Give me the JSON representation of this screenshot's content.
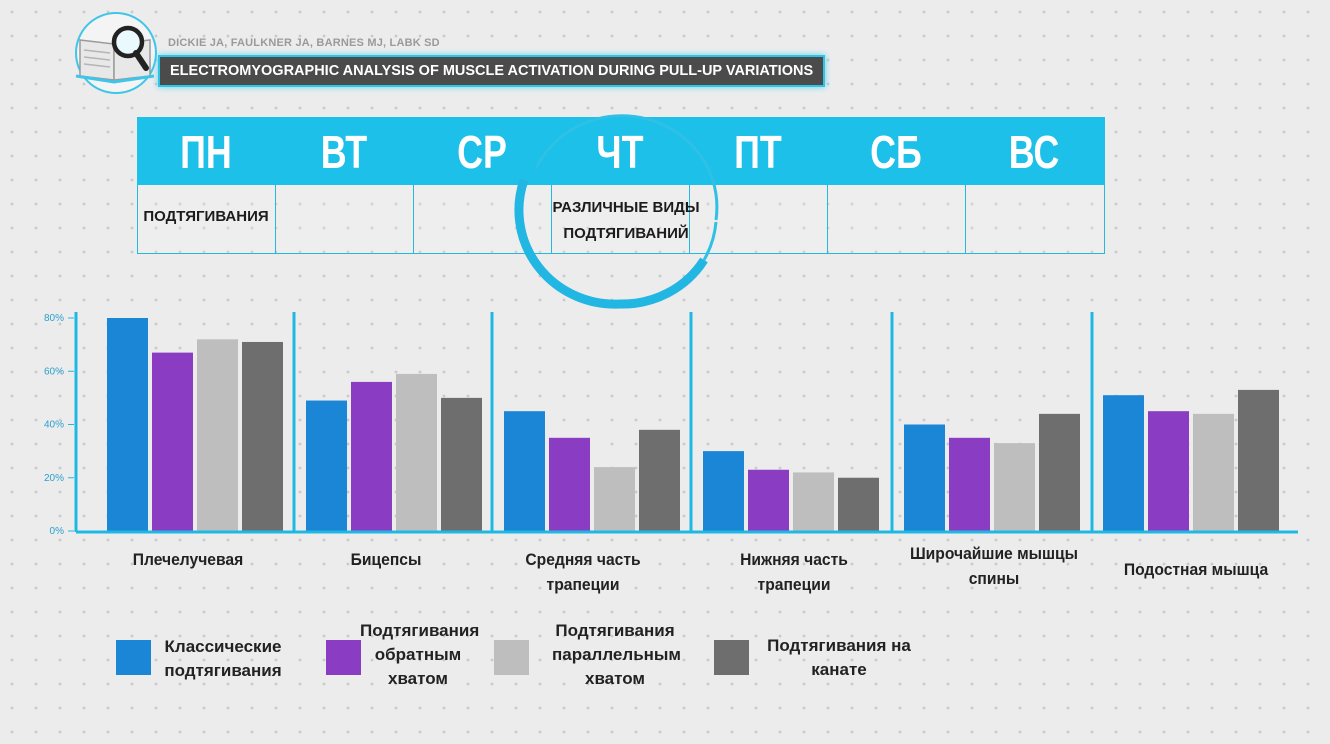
{
  "header": {
    "authors": "DICKIE JA, FAULKNER JA, BARNES MJ, LABK SD",
    "title": "ELECTROMYOGRAPHIC ANALYSIS OF MUSCLE ACTIVATION DURING PULL-UP VARIATIONS",
    "logo_icon": "book-magnifier-icon"
  },
  "schedule": {
    "days": [
      "ПН",
      "ВТ",
      "СР",
      "ЧТ",
      "ПТ",
      "СБ",
      "ВС"
    ],
    "entries": [
      "ПОДТЯГИВАНИЯ",
      "",
      "",
      "РАЗЛИЧНЫЕ ВИДЫ ПОДТЯГИВАНИЙ",
      "",
      "",
      ""
    ],
    "header_color": "#1dc0e8"
  },
  "chart_data": {
    "type": "bar",
    "categories": [
      "Плечелучевая",
      "Бицепсы",
      "Средняя часть трапеции",
      "Нижняя часть трапеции",
      "Широчайшие мышцы спины",
      "Подостная мышца"
    ],
    "series": [
      {
        "name": "Классические подтягивания",
        "color": "#1b85d6",
        "values": [
          80,
          49,
          45,
          30,
          40,
          51
        ]
      },
      {
        "name": "Подтягивания обратным хватом",
        "color": "#8a3cc2",
        "values": [
          67,
          56,
          35,
          23,
          35,
          45
        ]
      },
      {
        "name": "Подтягивания параллельным хватом",
        "color": "#bebebe",
        "values": [
          72,
          59,
          24,
          22,
          33,
          44
        ]
      },
      {
        "name": "Подтягивания на канате",
        "color": "#6e6e6e",
        "values": [
          71,
          50,
          38,
          20,
          44,
          53
        ]
      }
    ],
    "yticks": [
      "0%",
      "20%",
      "40%",
      "60%",
      "80%"
    ],
    "ylim": [
      0,
      80
    ],
    "axis_color": "#1fb8e3",
    "title": "",
    "xlabel": "",
    "ylabel": ""
  }
}
